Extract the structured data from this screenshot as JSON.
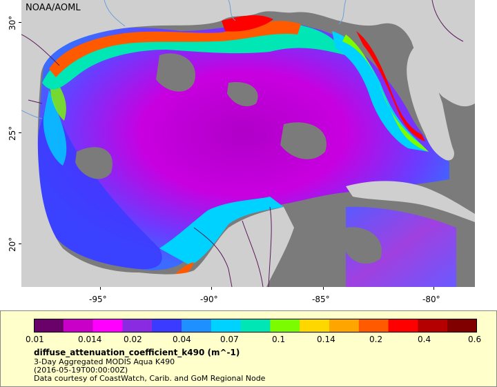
{
  "header": {
    "credit": "NOAA/AOML"
  },
  "axes": {
    "x_ticks": [
      "-95°",
      "-90°",
      "-85°",
      "-80°"
    ],
    "y_ticks": [
      "30°",
      "25°",
      "20°"
    ]
  },
  "colorbar": {
    "labels": [
      "0.01",
      "0.014",
      "0.02",
      "0.04",
      "0.07",
      "0.1",
      "0.14",
      "0.2",
      "0.4",
      "0.6"
    ],
    "colors": [
      "#6a006a",
      "#c800c8",
      "#ff00ff",
      "#8a2be2",
      "#3b3bff",
      "#1e90ff",
      "#00d2ff",
      "#00e6b4",
      "#7cfc00",
      "#ffd700",
      "#ffa500",
      "#ff5a00",
      "#ff0000",
      "#b40000",
      "#800000"
    ],
    "scale": "log"
  },
  "info": {
    "variable": "diffuse_attenuation_coefficient_k490 (m^-1)",
    "line1": "3-Day Aggregated MODIS Aqua K490",
    "line2": "(2016-05-19T00:00:00Z)",
    "line3": "Data courtesy of CoastWatch, Carib. and GoM Regional Node"
  },
  "colors": {
    "land": "#cfcfcf",
    "nodata": "#7b7b7b",
    "legend_bg": "#ffffcc"
  }
}
